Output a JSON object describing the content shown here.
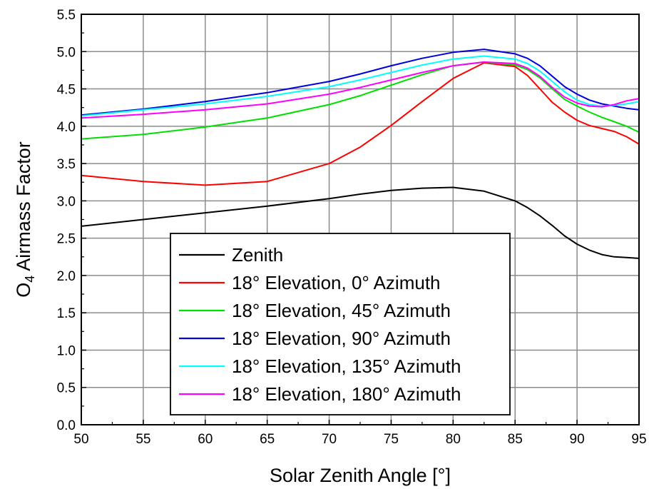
{
  "chart_data": {
    "type": "line",
    "title": "",
    "xlabel": "Solar Zenith Angle [°]",
    "ylabel_main": "O",
    "ylabel_sub": "4",
    "ylabel_rest": " Airmass Factor",
    "xlim": [
      50,
      95
    ],
    "ylim": [
      0.0,
      5.5
    ],
    "x_ticks": [
      "50",
      "55",
      "60",
      "65",
      "70",
      "75",
      "80",
      "85",
      "90",
      "95"
    ],
    "y_ticks": [
      "0.0",
      "0.5",
      "1.0",
      "1.5",
      "2.0",
      "2.5",
      "3.0",
      "3.5",
      "4.0",
      "4.5",
      "5.0",
      "5.5"
    ],
    "grid": true,
    "legend_position": "bottom-center",
    "series": [
      {
        "name": "Zenith",
        "color": "#000000",
        "points": [
          [
            50,
            2.66
          ],
          [
            55,
            2.75
          ],
          [
            60,
            2.84
          ],
          [
            65,
            2.93
          ],
          [
            70,
            3.03
          ],
          [
            72.5,
            3.09
          ],
          [
            75,
            3.14
          ],
          [
            77.5,
            3.17
          ],
          [
            80,
            3.18
          ],
          [
            82.5,
            3.13
          ],
          [
            85,
            3.0
          ],
          [
            86,
            2.91
          ],
          [
            87,
            2.8
          ],
          [
            88,
            2.67
          ],
          [
            89,
            2.53
          ],
          [
            90,
            2.42
          ],
          [
            91,
            2.34
          ],
          [
            92,
            2.28
          ],
          [
            93,
            2.25
          ],
          [
            94,
            2.24
          ],
          [
            95,
            2.23
          ]
        ]
      },
      {
        "name": "18° Elevation, 0° Azimuth",
        "color": "#ff0000",
        "points": [
          [
            50,
            3.34
          ],
          [
            55,
            3.26
          ],
          [
            60,
            3.21
          ],
          [
            65,
            3.26
          ],
          [
            70,
            3.5
          ],
          [
            72.5,
            3.72
          ],
          [
            75,
            4.01
          ],
          [
            77.5,
            4.33
          ],
          [
            80,
            4.64
          ],
          [
            82.5,
            4.85
          ],
          [
            85,
            4.8
          ],
          [
            86,
            4.68
          ],
          [
            87,
            4.5
          ],
          [
            88,
            4.32
          ],
          [
            89,
            4.19
          ],
          [
            90,
            4.08
          ],
          [
            91,
            4.01
          ],
          [
            92,
            3.97
          ],
          [
            93,
            3.93
          ],
          [
            94,
            3.86
          ],
          [
            95,
            3.76
          ]
        ]
      },
      {
        "name": "18° Elevation, 45° Azimuth",
        "color": "#00e000",
        "points": [
          [
            50,
            3.83
          ],
          [
            55,
            3.89
          ],
          [
            60,
            3.99
          ],
          [
            65,
            4.11
          ],
          [
            70,
            4.29
          ],
          [
            72.5,
            4.41
          ],
          [
            75,
            4.55
          ],
          [
            77.5,
            4.69
          ],
          [
            80,
            4.81
          ],
          [
            82.5,
            4.86
          ],
          [
            85,
            4.82
          ],
          [
            86,
            4.76
          ],
          [
            87,
            4.65
          ],
          [
            88,
            4.5
          ],
          [
            89,
            4.36
          ],
          [
            90,
            4.27
          ],
          [
            91,
            4.19
          ],
          [
            92,
            4.12
          ],
          [
            93,
            4.06
          ],
          [
            94,
            4.0
          ],
          [
            95,
            3.92
          ]
        ]
      },
      {
        "name": "18° Elevation, 90° Azimuth",
        "color": "#0000dd",
        "points": [
          [
            50,
            4.15
          ],
          [
            55,
            4.23
          ],
          [
            60,
            4.33
          ],
          [
            65,
            4.45
          ],
          [
            70,
            4.6
          ],
          [
            72.5,
            4.7
          ],
          [
            75,
            4.81
          ],
          [
            77.5,
            4.91
          ],
          [
            80,
            4.99
          ],
          [
            82.5,
            5.03
          ],
          [
            85,
            4.97
          ],
          [
            86,
            4.91
          ],
          [
            87,
            4.81
          ],
          [
            88,
            4.67
          ],
          [
            89,
            4.53
          ],
          [
            90,
            4.43
          ],
          [
            91,
            4.35
          ],
          [
            92,
            4.3
          ],
          [
            93,
            4.27
          ],
          [
            94,
            4.24
          ],
          [
            95,
            4.22
          ]
        ]
      },
      {
        "name": "18° Elevation, 135° Azimuth",
        "color": "#00ffff",
        "points": [
          [
            50,
            4.14
          ],
          [
            55,
            4.22
          ],
          [
            60,
            4.3
          ],
          [
            65,
            4.4
          ],
          [
            70,
            4.53
          ],
          [
            72.5,
            4.62
          ],
          [
            75,
            4.72
          ],
          [
            77.5,
            4.82
          ],
          [
            80,
            4.9
          ],
          [
            82.5,
            4.94
          ],
          [
            85,
            4.9
          ],
          [
            86,
            4.84
          ],
          [
            87,
            4.74
          ],
          [
            88,
            4.6
          ],
          [
            89,
            4.46
          ],
          [
            90,
            4.35
          ],
          [
            91,
            4.29
          ],
          [
            92,
            4.27
          ],
          [
            93,
            4.28
          ],
          [
            94,
            4.3
          ],
          [
            95,
            4.33
          ]
        ]
      },
      {
        "name": "18° Elevation, 180° Azimuth",
        "color": "#ff00ff",
        "points": [
          [
            50,
            4.11
          ],
          [
            55,
            4.16
          ],
          [
            60,
            4.22
          ],
          [
            65,
            4.3
          ],
          [
            70,
            4.43
          ],
          [
            72.5,
            4.52
          ],
          [
            75,
            4.62
          ],
          [
            77.5,
            4.72
          ],
          [
            80,
            4.81
          ],
          [
            82.5,
            4.86
          ],
          [
            85,
            4.84
          ],
          [
            86,
            4.78
          ],
          [
            87,
            4.67
          ],
          [
            88,
            4.52
          ],
          [
            89,
            4.39
          ],
          [
            90,
            4.31
          ],
          [
            91,
            4.27
          ],
          [
            92,
            4.26
          ],
          [
            93,
            4.29
          ],
          [
            94,
            4.34
          ],
          [
            95,
            4.37
          ]
        ]
      }
    ]
  }
}
